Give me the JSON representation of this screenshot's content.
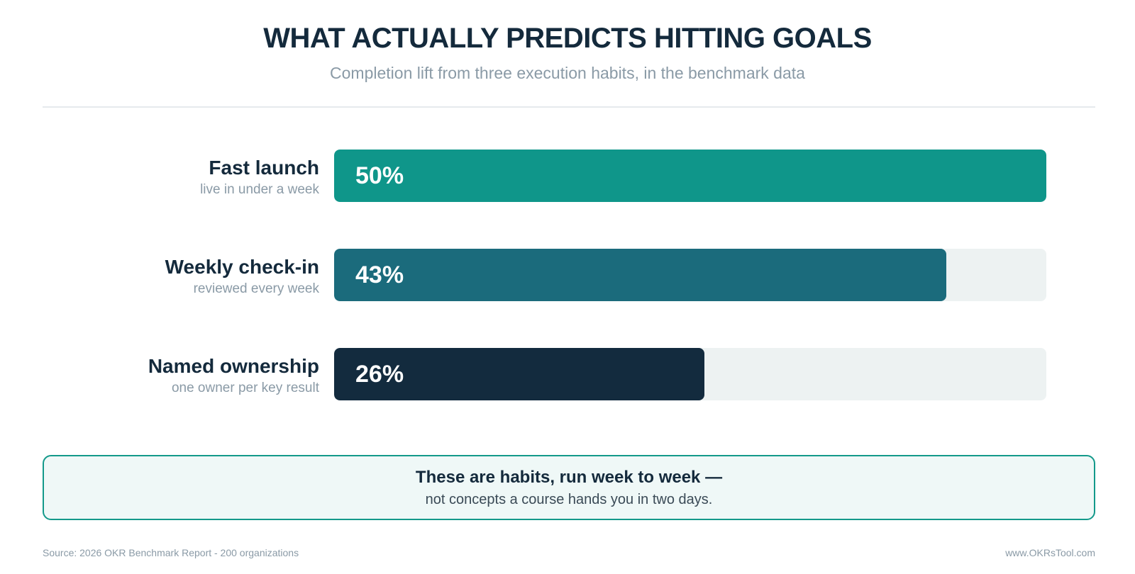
{
  "header": {
    "title": "WHAT ACTUALLY PREDICTS HITTING GOALS",
    "subtitle": "Completion lift from three execution habits, in the benchmark data"
  },
  "chart_data": {
    "type": "bar",
    "orientation": "horizontal",
    "categories": [
      "Fast launch",
      "Weekly check-in",
      "Named ownership"
    ],
    "category_sublabels": [
      "live in under a week",
      "reviewed every week",
      "one owner per key result"
    ],
    "values": [
      50,
      43,
      26
    ],
    "value_labels": [
      "50%",
      "43%",
      "26%"
    ],
    "unit": "%",
    "xlim": [
      0,
      50
    ],
    "bar_colors": [
      "#0f968a",
      "#1b6b7c",
      "#132b3e"
    ],
    "track_color": "#edf2f2",
    "grid": false,
    "legend": "none"
  },
  "callout": {
    "strong": "These are habits, run week to week —",
    "text": "not concepts a course hands you in two days."
  },
  "footer": {
    "source": "Source: 2026 OKR Benchmark Report - 200 organizations",
    "site": "www.OKRsTool.com"
  }
}
